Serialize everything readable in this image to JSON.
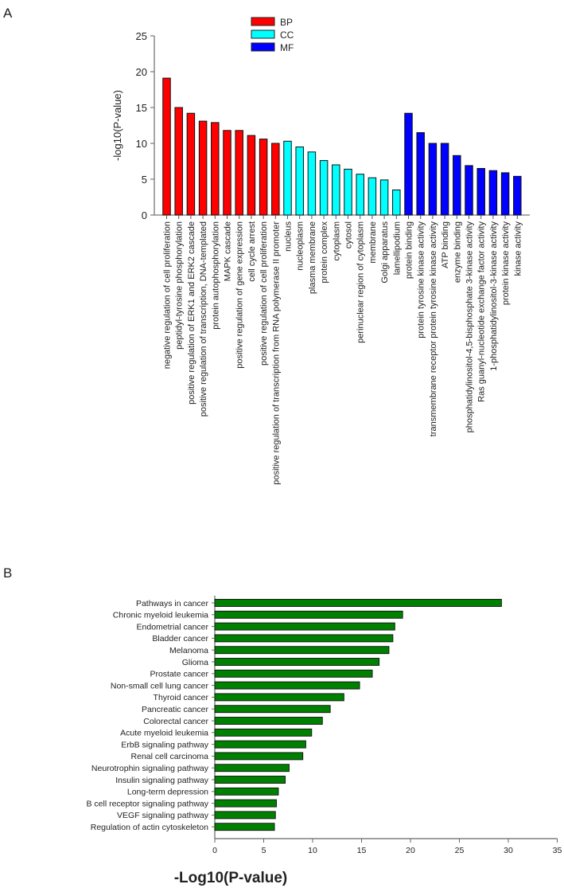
{
  "chart_data": [
    {
      "panel_label": "A",
      "type": "bar",
      "title": "",
      "xlabel": "",
      "ylabel": "-log10(P-value)",
      "ylim": [
        0,
        25
      ],
      "yticks": [
        0,
        5,
        10,
        15,
        20,
        25
      ],
      "grid": false,
      "legend_position": "top-center",
      "legend": [
        {
          "name": "BP",
          "color": "#ff0000"
        },
        {
          "name": "CC",
          "color": "#00ffff"
        },
        {
          "name": "MF",
          "color": "#0000ff"
        }
      ],
      "series": [
        {
          "name": "BP",
          "color": "#ff0000",
          "categories": [
            "negative regulation of cell proliferation",
            "peptidyl-tyrosine phosphorylation",
            "positive regulation of ERK1 and ERK2 cascade",
            "positive regulation of transcription, DNA-templated",
            "protein autophosphorylation",
            "MAPK cascade",
            "positive regulation of gene expression",
            "cell cycle arrest",
            "positive regulation of cell proliferation",
            "positive regulation of transcription from RNA polymerase II promoter"
          ],
          "values": [
            19.1,
            15.0,
            14.2,
            13.1,
            12.9,
            11.8,
            11.8,
            11.1,
            10.6,
            10.0
          ]
        },
        {
          "name": "CC",
          "color": "#00ffff",
          "categories": [
            "nucleus",
            "nucleoplasm",
            "plasma membrane",
            "protein complex",
            "cytoplasm",
            "cytosol",
            "perinuclear region of cytoplasm",
            "membrane",
            "Golgi apparatus",
            "lamellipodium"
          ],
          "values": [
            10.3,
            9.5,
            8.8,
            7.6,
            7.0,
            6.4,
            5.7,
            5.2,
            4.9,
            3.5
          ]
        },
        {
          "name": "MF",
          "color": "#0000ff",
          "categories": [
            "protein binding",
            "protein tyrosine kinase activity",
            "transmembrane receptor protein tyrosine kinase activity",
            "ATP binding",
            "enzyme binding",
            "phosphatidylinositol-4,5-bisphosphate 3-kinase activity",
            "Ras guanyl-nucleotide exchange factor activity",
            "1-phosphatidylinositol-3-kinase activity",
            "protein kinase activity",
            "kinase activity"
          ],
          "values": [
            14.2,
            11.5,
            10.0,
            10.0,
            8.3,
            6.9,
            6.5,
            6.2,
            5.9,
            5.4
          ]
        }
      ]
    },
    {
      "panel_label": "B",
      "type": "bar",
      "orientation": "horizontal",
      "title": "",
      "xlabel": "-Log10(P-value)",
      "ylabel": "",
      "xlim": [
        0,
        35
      ],
      "xticks": [
        0,
        5,
        10,
        15,
        20,
        25,
        30,
        35
      ],
      "grid": false,
      "color": "#008000",
      "categories": [
        "Pathways in cancer",
        "Chronic myeloid leukemia",
        "Endometrial cancer",
        "Bladder cancer",
        "Melanoma",
        "Glioma",
        "Prostate cancer",
        "Non-small cell lung cancer",
        "Thyroid cancer",
        "Pancreatic cancer",
        "Colorectal cancer",
        "Acute myeloid leukemia",
        "ErbB signaling pathway",
        "Renal cell carcinoma",
        "Neurotrophin signaling pathway",
        "Insulin signaling pathway",
        "Long-term depression",
        "B cell receptor signaling pathway",
        "VEGF signaling pathway",
        "Regulation of actin cytoskeleton"
      ],
      "values": [
        29.3,
        19.2,
        18.4,
        18.2,
        17.8,
        16.8,
        16.1,
        14.8,
        13.2,
        11.8,
        11.0,
        9.9,
        9.3,
        9.0,
        7.6,
        7.2,
        6.5,
        6.3,
        6.2,
        6.1
      ]
    }
  ]
}
